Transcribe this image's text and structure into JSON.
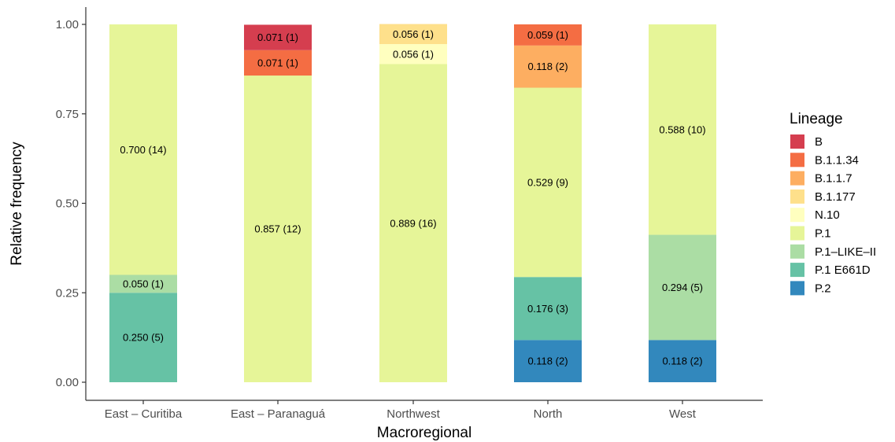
{
  "chart_data": {
    "type": "bar",
    "stacked": true,
    "xlabel": "Macroregional",
    "ylabel": "Relative frequency",
    "ylim": [
      0,
      1
    ],
    "yticks": [
      "0.00",
      "0.25",
      "0.50",
      "0.75",
      "1.00"
    ],
    "grid": false,
    "legend_position": "right",
    "legend_title": "Lineage",
    "categories": [
      "East – Curitiba",
      "East – Paranaguá",
      "Northwest",
      "North",
      "West"
    ],
    "series": [
      {
        "name": "B",
        "color": "#d53e4f",
        "values": [
          0,
          0.071,
          0,
          0,
          0
        ],
        "labels": [
          "",
          "0.071 (1)",
          "",
          "",
          ""
        ]
      },
      {
        "name": "B.1.1.34",
        "color": "#f46d43",
        "values": [
          0,
          0.071,
          0,
          0.059,
          0
        ],
        "labels": [
          "",
          "0.071 (1)",
          "",
          "0.059 (1)",
          ""
        ]
      },
      {
        "name": "B.1.1.7",
        "color": "#fdae61",
        "values": [
          0,
          0,
          0,
          0.118,
          0
        ],
        "labels": [
          "",
          "",
          "",
          "0.118 (2)",
          ""
        ]
      },
      {
        "name": "B.1.177",
        "color": "#fee08b",
        "values": [
          0,
          0,
          0.056,
          0,
          0
        ],
        "labels": [
          "",
          "",
          "0.056 (1)",
          "",
          ""
        ]
      },
      {
        "name": "N.10",
        "color": "#ffffbf",
        "values": [
          0,
          0,
          0.056,
          0,
          0
        ],
        "labels": [
          "",
          "",
          "0.056 (1)",
          "",
          ""
        ]
      },
      {
        "name": "P.1",
        "color": "#e6f598",
        "values": [
          0.7,
          0.857,
          0.889,
          0.529,
          0.588
        ],
        "labels": [
          "0.700 (14)",
          "0.857 (12)",
          "0.889 (16)",
          "0.529 (9)",
          "0.588 (10)"
        ]
      },
      {
        "name": "P.1–LIKE–II",
        "color": "#abdda4",
        "values": [
          0.05,
          0,
          0,
          0,
          0.294
        ],
        "labels": [
          "0.050 (1)",
          "",
          "",
          "",
          "0.294 (5)"
        ]
      },
      {
        "name": "P.1 E661D",
        "color": "#66c2a5",
        "values": [
          0.25,
          0,
          0,
          0.176,
          0
        ],
        "labels": [
          "0.250 (5)",
          "",
          "",
          "0.176 (3)",
          ""
        ]
      },
      {
        "name": "P.2",
        "color": "#3288bd",
        "values": [
          0,
          0,
          0,
          0.118,
          0.118
        ],
        "labels": [
          "",
          "",
          "",
          "0.118 (2)",
          "0.118 (2)"
        ]
      }
    ]
  }
}
